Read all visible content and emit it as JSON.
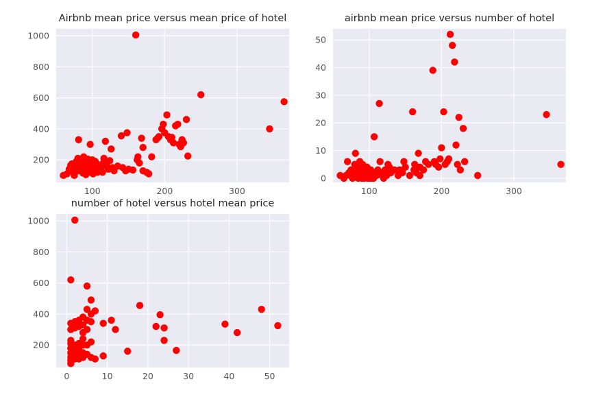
{
  "chart_data": [
    {
      "type": "scatter",
      "title": "Airbnb mean price versus mean price of hotel",
      "xlabel": "",
      "ylabel": "",
      "xlim": [
        50,
        372
      ],
      "ylim": [
        55,
        1045
      ],
      "xticks": [
        100,
        200,
        300
      ],
      "yticks": [
        200,
        400,
        600,
        800,
        1000
      ],
      "grid": true,
      "color": "#ff0000",
      "points": [
        [
          60,
          100
        ],
        [
          65,
          110
        ],
        [
          68,
          140
        ],
        [
          70,
          165
        ],
        [
          72,
          175
        ],
        [
          74,
          120
        ],
        [
          75,
          100
        ],
        [
          77,
          150
        ],
        [
          78,
          190
        ],
        [
          80,
          130
        ],
        [
          80,
          210
        ],
        [
          81,
          330
        ],
        [
          82,
          160
        ],
        [
          84,
          200
        ],
        [
          85,
          140
        ],
        [
          86,
          180
        ],
        [
          87,
          115
        ],
        [
          88,
          220
        ],
        [
          89,
          160
        ],
        [
          90,
          145
        ],
        [
          90,
          190
        ],
        [
          91,
          105
        ],
        [
          92,
          130
        ],
        [
          93,
          175
        ],
        [
          94,
          205
        ],
        [
          95,
          150
        ],
        [
          96,
          120
        ],
        [
          97,
          300
        ],
        [
          98,
          185
        ],
        [
          99,
          140
        ],
        [
          100,
          165
        ],
        [
          100,
          200
        ],
        [
          101,
          110
        ],
        [
          102,
          150
        ],
        [
          103,
          125
        ],
        [
          104,
          190
        ],
        [
          105,
          140
        ],
        [
          106,
          175
        ],
        [
          107,
          120
        ],
        [
          108,
          160
        ],
        [
          110,
          135
        ],
        [
          112,
          150
        ],
        [
          114,
          120
        ],
        [
          115,
          180
        ],
        [
          116,
          210
        ],
        [
          118,
          320
        ],
        [
          120,
          160
        ],
        [
          122,
          140
        ],
        [
          124,
          195
        ],
        [
          126,
          270
        ],
        [
          128,
          150
        ],
        [
          130,
          130
        ],
        [
          135,
          160
        ],
        [
          140,
          355
        ],
        [
          142,
          150
        ],
        [
          146,
          130
        ],
        [
          148,
          375
        ],
        [
          150,
          140
        ],
        [
          156,
          135
        ],
        [
          160,
          1005
        ],
        [
          162,
          200
        ],
        [
          163,
          220
        ],
        [
          165,
          180
        ],
        [
          168,
          340
        ],
        [
          170,
          280
        ],
        [
          170,
          130
        ],
        [
          175,
          120
        ],
        [
          178,
          110
        ],
        [
          182,
          220
        ],
        [
          188,
          330
        ],
        [
          190,
          340
        ],
        [
          192,
          350
        ],
        [
          196,
          400
        ],
        [
          198,
          430
        ],
        [
          200,
          375
        ],
        [
          203,
          490
        ],
        [
          205,
          350
        ],
        [
          208,
          330
        ],
        [
          210,
          345
        ],
        [
          212,
          310
        ],
        [
          215,
          420
        ],
        [
          218,
          430
        ],
        [
          220,
          300
        ],
        [
          222,
          285
        ],
        [
          224,
          330
        ],
        [
          226,
          310
        ],
        [
          230,
          460
        ],
        [
          232,
          225
        ],
        [
          250,
          620
        ],
        [
          345,
          400
        ],
        [
          365,
          575
        ]
      ]
    },
    {
      "type": "scatter",
      "title": "airbnb mean price versus number of hotel",
      "xlabel": "",
      "ylabel": "",
      "xlim": [
        50,
        372
      ],
      "ylim": [
        -1.5,
        54
      ],
      "xticks": [
        100,
        200,
        300
      ],
      "yticks": [
        0,
        10,
        20,
        30,
        40,
        50
      ],
      "grid": true,
      "color": "#ff0000",
      "points": [
        [
          60,
          1
        ],
        [
          65,
          0
        ],
        [
          68,
          1
        ],
        [
          70,
          6
        ],
        [
          72,
          2
        ],
        [
          74,
          1
        ],
        [
          75,
          3
        ],
        [
          77,
          0
        ],
        [
          78,
          1
        ],
        [
          80,
          2
        ],
        [
          80,
          5
        ],
        [
          81,
          9
        ],
        [
          82,
          1
        ],
        [
          84,
          4
        ],
        [
          85,
          0
        ],
        [
          86,
          2
        ],
        [
          87,
          6
        ],
        [
          88,
          1
        ],
        [
          89,
          3
        ],
        [
          90,
          0
        ],
        [
          90,
          2
        ],
        [
          91,
          5
        ],
        [
          92,
          1
        ],
        [
          93,
          0
        ],
        [
          94,
          3
        ],
        [
          95,
          1
        ],
        [
          96,
          2
        ],
        [
          97,
          4
        ],
        [
          98,
          0
        ],
        [
          99,
          1
        ],
        [
          100,
          2
        ],
        [
          100,
          0
        ],
        [
          101,
          1
        ],
        [
          102,
          3
        ],
        [
          103,
          0
        ],
        [
          104,
          2
        ],
        [
          105,
          1
        ],
        [
          106,
          0
        ],
        [
          107,
          15
        ],
        [
          108,
          2
        ],
        [
          110,
          1
        ],
        [
          112,
          3
        ],
        [
          114,
          27
        ],
        [
          115,
          6
        ],
        [
          116,
          2
        ],
        [
          118,
          1
        ],
        [
          120,
          0
        ],
        [
          122,
          3
        ],
        [
          124,
          1
        ],
        [
          126,
          5
        ],
        [
          128,
          4
        ],
        [
          130,
          2
        ],
        [
          135,
          3
        ],
        [
          140,
          1
        ],
        [
          142,
          3
        ],
        [
          146,
          2
        ],
        [
          148,
          6
        ],
        [
          150,
          4
        ],
        [
          156,
          1
        ],
        [
          160,
          24
        ],
        [
          162,
          3
        ],
        [
          163,
          5
        ],
        [
          165,
          2
        ],
        [
          168,
          9
        ],
        [
          170,
          4
        ],
        [
          170,
          1
        ],
        [
          175,
          3
        ],
        [
          178,
          6
        ],
        [
          182,
          5
        ],
        [
          188,
          39
        ],
        [
          190,
          6
        ],
        [
          192,
          5
        ],
        [
          196,
          4
        ],
        [
          198,
          7
        ],
        [
          200,
          11
        ],
        [
          203,
          24
        ],
        [
          205,
          5
        ],
        [
          208,
          6
        ],
        [
          210,
          7
        ],
        [
          212,
          52
        ],
        [
          215,
          48
        ],
        [
          218,
          42
        ],
        [
          220,
          12
        ],
        [
          222,
          5
        ],
        [
          224,
          22
        ],
        [
          226,
          3
        ],
        [
          230,
          18
        ],
        [
          232,
          6
        ],
        [
          250,
          1
        ],
        [
          345,
          23
        ],
        [
          365,
          5
        ]
      ]
    },
    {
      "type": "scatter",
      "title": "number of hotel versus hotel mean price",
      "xlabel": "",
      "ylabel": "",
      "xlim": [
        -2.6,
        54.8
      ],
      "ylim": [
        55,
        1045
      ],
      "xticks": [
        0,
        10,
        20,
        30,
        40,
        50
      ],
      "yticks": [
        200,
        400,
        600,
        800,
        1000
      ],
      "grid": true,
      "color": "#ff0000",
      "points": [
        [
          1,
          620
        ],
        [
          1,
          340
        ],
        [
          1,
          300
        ],
        [
          1,
          230
        ],
        [
          1,
          210
        ],
        [
          1,
          180
        ],
        [
          1,
          150
        ],
        [
          1,
          120
        ],
        [
          1,
          100
        ],
        [
          1,
          80
        ],
        [
          2,
          1005
        ],
        [
          2,
          350
        ],
        [
          2,
          310
        ],
        [
          2,
          200
        ],
        [
          2,
          160
        ],
        [
          2,
          130
        ],
        [
          2,
          110
        ],
        [
          3,
          360
        ],
        [
          3,
          320
        ],
        [
          3,
          210
        ],
        [
          3,
          170
        ],
        [
          3,
          140
        ],
        [
          3,
          110
        ],
        [
          4,
          380
        ],
        [
          4,
          330
        ],
        [
          4,
          280
        ],
        [
          4,
          240
        ],
        [
          4,
          200
        ],
        [
          4,
          150
        ],
        [
          4,
          120
        ],
        [
          5,
          580
        ],
        [
          5,
          430
        ],
        [
          5,
          360
        ],
        [
          5,
          300
        ],
        [
          5,
          200
        ],
        [
          5,
          140
        ],
        [
          6,
          490
        ],
        [
          6,
          400
        ],
        [
          6,
          350
        ],
        [
          6,
          220
        ],
        [
          6,
          120
        ],
        [
          7,
          420
        ],
        [
          7,
          110
        ],
        [
          9,
          340
        ],
        [
          9,
          130
        ],
        [
          11,
          360
        ],
        [
          12,
          300
        ],
        [
          15,
          160
        ],
        [
          18,
          455
        ],
        [
          22,
          320
        ],
        [
          23,
          395
        ],
        [
          24,
          310
        ],
        [
          24,
          230
        ],
        [
          27,
          165
        ],
        [
          39,
          335
        ],
        [
          42,
          280
        ],
        [
          48,
          430
        ],
        [
          52,
          325
        ]
      ]
    }
  ]
}
